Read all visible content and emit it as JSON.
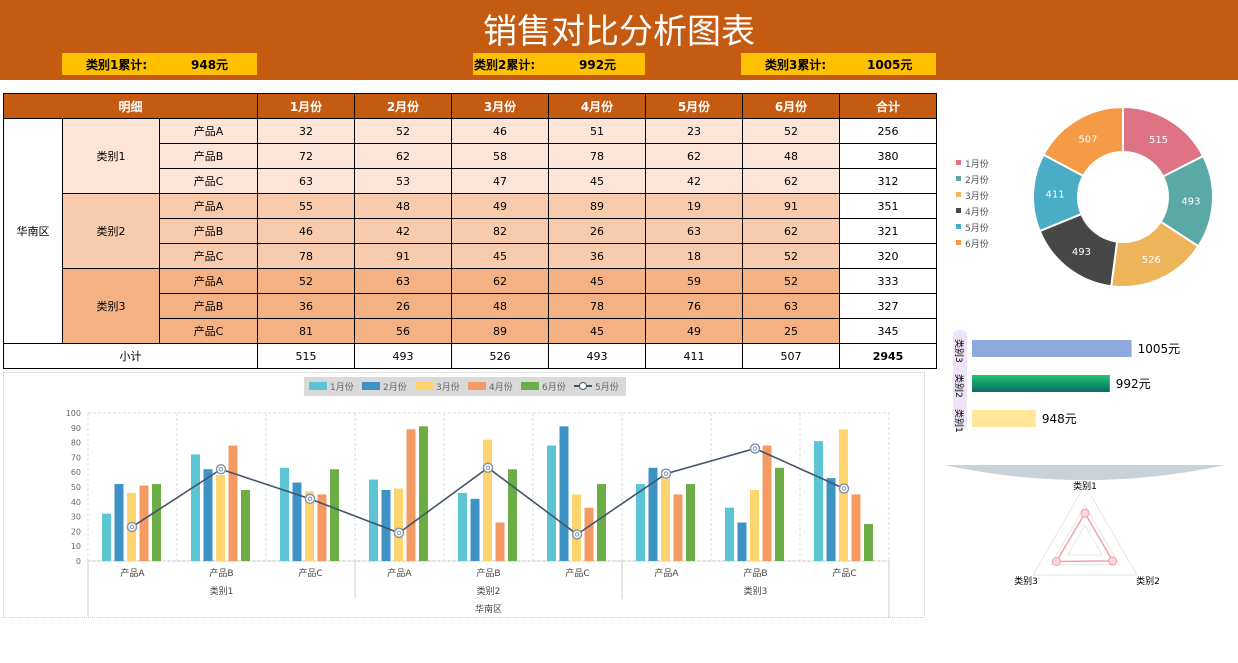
{
  "header": {
    "title": "销售对比分析图表",
    "summaries": [
      {
        "label": "类别1累计:",
        "value": "948元"
      },
      {
        "label": "类别2累计:",
        "value": "992元"
      },
      {
        "label": "类别3累计:",
        "value": "1005元"
      }
    ]
  },
  "table": {
    "headers": [
      "明细",
      "1月份",
      "2月份",
      "3月份",
      "4月份",
      "5月份",
      "6月份",
      "合计"
    ],
    "region": "华南区",
    "groups": [
      {
        "category": "类别1",
        "rows": [
          {
            "product": "产品A",
            "values": [
              32,
              52,
              46,
              51,
              23,
              52
            ],
            "total": 256
          },
          {
            "product": "产品B",
            "values": [
              72,
              62,
              58,
              78,
              62,
              48
            ],
            "total": 380
          },
          {
            "product": "产品C",
            "values": [
              63,
              53,
              47,
              45,
              42,
              62
            ],
            "total": 312
          }
        ]
      },
      {
        "category": "类别2",
        "rows": [
          {
            "product": "产品A",
            "values": [
              55,
              48,
              49,
              89,
              19,
              91
            ],
            "total": 351
          },
          {
            "product": "产品B",
            "values": [
              46,
              42,
              82,
              26,
              63,
              62
            ],
            "total": 321
          },
          {
            "product": "产品C",
            "values": [
              78,
              91,
              45,
              36,
              18,
              52
            ],
            "total": 320
          }
        ]
      },
      {
        "category": "类别3",
        "rows": [
          {
            "product": "产品A",
            "values": [
              52,
              63,
              62,
              45,
              59,
              52
            ],
            "total": 333
          },
          {
            "product": "产品B",
            "values": [
              36,
              26,
              48,
              78,
              76,
              63
            ],
            "total": 327
          },
          {
            "product": "产品C",
            "values": [
              81,
              56,
              89,
              45,
              49,
              25
            ],
            "total": 345
          }
        ]
      }
    ],
    "subtotal_label": "小计",
    "subtotals": [
      515,
      493,
      526,
      493,
      411,
      507
    ],
    "grand_total": 2945
  },
  "chart_data": [
    {
      "type": "bar",
      "title": "",
      "categories": [
        "产品A",
        "产品B",
        "产品C",
        "产品A",
        "产品B",
        "产品C",
        "产品A",
        "产品B",
        "产品C"
      ],
      "category_groups": [
        "类别1",
        "类别2",
        "类别3"
      ],
      "outer_group": "华南区",
      "ylim": [
        0,
        100
      ],
      "yticks": [
        0,
        10,
        20,
        30,
        40,
        50,
        60,
        70,
        80,
        90,
        100
      ],
      "legend": "top",
      "series": [
        {
          "name": "1月份",
          "type": "bar",
          "color": "#5BC5D3",
          "values": [
            32,
            72,
            63,
            55,
            46,
            78,
            52,
            36,
            81
          ]
        },
        {
          "name": "2月份",
          "type": "bar",
          "color": "#3E93C4",
          "values": [
            52,
            62,
            53,
            48,
            42,
            91,
            63,
            26,
            56
          ]
        },
        {
          "name": "3月份",
          "type": "bar",
          "color": "#FDD46E",
          "values": [
            46,
            58,
            47,
            49,
            82,
            45,
            62,
            48,
            89
          ]
        },
        {
          "name": "4月份",
          "type": "bar",
          "color": "#F49B63",
          "values": [
            51,
            78,
            45,
            89,
            26,
            36,
            45,
            78,
            45
          ]
        },
        {
          "name": "6月份",
          "type": "bar",
          "color": "#6CAE45",
          "values": [
            52,
            48,
            62,
            91,
            62,
            52,
            52,
            63,
            25
          ]
        },
        {
          "name": "5月份",
          "type": "line",
          "color": "#44546A",
          "values": [
            23,
            62,
            42,
            19,
            63,
            18,
            59,
            76,
            49
          ]
        }
      ]
    },
    {
      "type": "pie",
      "donut": true,
      "legend": "left",
      "categories": [
        "1月份",
        "2月份",
        "3月份",
        "4月份",
        "5月份",
        "6月份"
      ],
      "values": [
        515,
        493,
        526,
        493,
        411,
        507
      ],
      "colors": [
        "#DE7384",
        "#5BA9A6",
        "#EDB45A",
        "#474747",
        "#4BACC6",
        "#F59A45"
      ]
    },
    {
      "type": "bar",
      "orientation": "horizontal",
      "categories": [
        "类别3",
        "类别2",
        "类别1"
      ],
      "values": [
        1005,
        992,
        948
      ],
      "labels": [
        "1005元",
        "992元",
        "948元"
      ],
      "colors": [
        "#8EA9DB",
        "#16B56A",
        "#FFE699"
      ]
    },
    {
      "type": "radar",
      "categories": [
        "类别1",
        "类别2",
        "类别3"
      ],
      "values": [
        948,
        992,
        1005
      ],
      "color": "#F4A0AC"
    }
  ]
}
